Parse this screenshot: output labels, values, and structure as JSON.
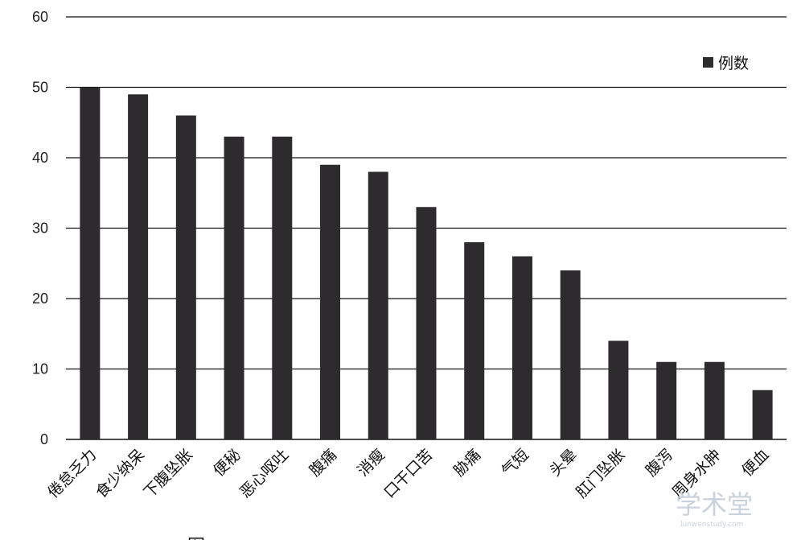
{
  "chart_data": {
    "type": "bar",
    "categories": [
      "倦怠乏力",
      "食少纳呆",
      "下腹坠胀",
      "便秘",
      "恶心呕吐",
      "腹痛",
      "消瘦",
      "口干口苦",
      "胁痛",
      "气短",
      "头晕",
      "肛门坠胀",
      "腹泻",
      "周身水肿",
      "便血"
    ],
    "series": [
      {
        "name": "例数",
        "values": [
          50,
          49,
          46,
          43,
          43,
          39,
          38,
          33,
          28,
          26,
          24,
          14,
          11,
          11,
          7
        ],
        "color": "#2d2b2d"
      }
    ],
    "ylim": [
      0,
      60
    ],
    "yticks": [
      0,
      10,
      20,
      30,
      40,
      50,
      60
    ],
    "grid": true,
    "legend_position": "top-right"
  },
  "caption": "图",
  "watermark": {
    "main": "学术堂",
    "sub": "lunwenstudy.com"
  }
}
